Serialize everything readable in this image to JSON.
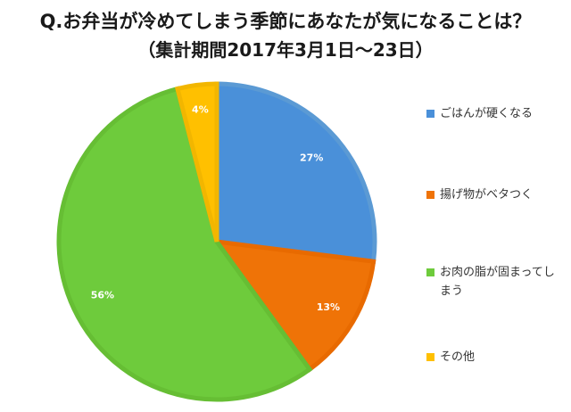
{
  "title": "Q.お弁当が冷めてしまう季節にあなたが気になることは？",
  "subtitle": "（集計期間2017年3月1日〜23日）",
  "chart_data": {
    "type": "pie",
    "title": "Q.お弁当が冷めてしまう季節にあなたが気になることは？",
    "subtitle": "（集計期間2017年3月1日〜23日）",
    "legend_position": "right",
    "categories": [
      "ごはんが硬くなる",
      "揚げ物がベタつく",
      "お肉の脂が固まってしまう",
      "その他"
    ],
    "values": [
      27,
      13,
      56,
      4
    ],
    "labels": [
      "27%",
      "13%",
      "56%",
      "4%"
    ],
    "colors": [
      "#4a90d9",
      "#ef7307",
      "#6ecb3c",
      "#ffc000"
    ],
    "border_colors": [
      "#5b9ad4",
      "#e86a00",
      "#66be34",
      "#f2b600"
    ]
  }
}
